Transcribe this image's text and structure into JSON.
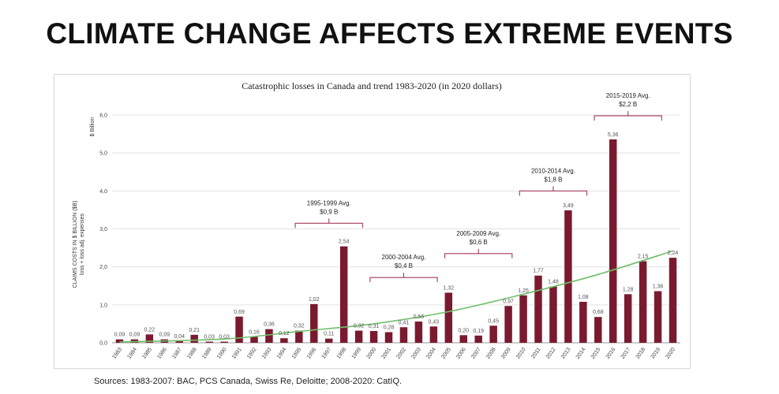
{
  "headline": "CLIMATE CHANGE AFFECTS EXTREME EVENTS",
  "sources": "Sources: 1983-2007: BAC, PCS Canada, Swiss Re, Deloitte; 2008-2020: CatIQ.",
  "colors": {
    "bar": "#7a1a2e",
    "bar_dark": "#4e0f1f",
    "trend": "#6fbf6a",
    "bracket": "#a23c5a",
    "grid": "#e3e3e3"
  },
  "chart_data": {
    "type": "bar",
    "title": "Catastrophic losses in Canada and trend 1983-2020 (in 2020 dollars)",
    "ylabel": "CLAIMS COSTS IN $ BILLION ($B)",
    "ylabel_sub": "loss + loss adj. expenses",
    "yunit": "$ Billion",
    "ylim": [
      0,
      6
    ],
    "yticks": [
      "0,0",
      "1,0",
      "2,0",
      "3,0",
      "4,0",
      "5,0",
      "6,0"
    ],
    "ytick_values": [
      0,
      1,
      2,
      3,
      4,
      5,
      6
    ],
    "grid": true,
    "categories": [
      "1983",
      "1984",
      "1985",
      "1986",
      "1987",
      "1988",
      "1989",
      "1990",
      "1991",
      "1992",
      "1993",
      "1994",
      "1995",
      "1996",
      "1997",
      "1998",
      "1999",
      "2000",
      "2001",
      "2002",
      "2003",
      "2004",
      "2005",
      "2006",
      "2007",
      "2008",
      "2009",
      "2010",
      "2011",
      "2012",
      "2013",
      "2014",
      "2015",
      "2016",
      "2017",
      "2018",
      "2019",
      "2020"
    ],
    "values": [
      0.09,
      0.09,
      0.22,
      0.09,
      0.04,
      0.21,
      0.03,
      0.03,
      0.69,
      0.16,
      0.36,
      0.12,
      0.32,
      1.02,
      0.11,
      2.54,
      0.32,
      0.31,
      0.28,
      0.41,
      0.56,
      0.43,
      1.32,
      0.2,
      0.19,
      0.45,
      0.97,
      1.25,
      1.77,
      1.48,
      3.49,
      1.08,
      0.68,
      5.36,
      1.28,
      2.15,
      1.36,
      2.24
    ],
    "value_labels": [
      "0,09",
      "0,09",
      "0,22",
      "0,09",
      "0,04",
      "0,21",
      "0,03",
      "0,03",
      "0,69",
      "0,16",
      "0,36",
      "0,12",
      "0,32",
      "1,02",
      "0,11",
      "2,54",
      "0,32",
      "0,31",
      "0,28",
      "0,41",
      "0,56",
      "0,43",
      "1,32",
      "0,20",
      "0,19",
      "0,45",
      "0,97",
      "1,25",
      "1,77",
      "1,48",
      "3,49",
      "1,08",
      "0,68",
      "5,36",
      "1,28",
      "2,15",
      "1,36",
      "2,24"
    ],
    "trend": {
      "type": "polynomial",
      "x": [
        1983,
        1990,
        1995,
        2000,
        2005,
        2010,
        2015,
        2020
      ],
      "y": [
        0.02,
        0.1,
        0.3,
        0.5,
        0.82,
        1.28,
        1.8,
        2.42
      ]
    },
    "annotations": [
      {
        "label": "1995-1999 Avg.",
        "value": "$0,9 B",
        "from": "1995",
        "to": "1999",
        "level": 3.15
      },
      {
        "label": "2000-2004 Avg.",
        "value": "$0,4 B",
        "from": "2000",
        "to": "2004",
        "level": 1.72
      },
      {
        "label": "2005-2009 Avg.",
        "value": "$0,6 B",
        "from": "2005",
        "to": "2009",
        "level": 2.35
      },
      {
        "label": "2010-2014 Avg.",
        "value": "$1,8 B",
        "from": "2010",
        "to": "2014",
        "level": 4.0
      },
      {
        "label": "2015-2019 Avg.",
        "value": "$2,2 B",
        "from": "2015",
        "to": "2019",
        "level": 5.98
      }
    ]
  }
}
